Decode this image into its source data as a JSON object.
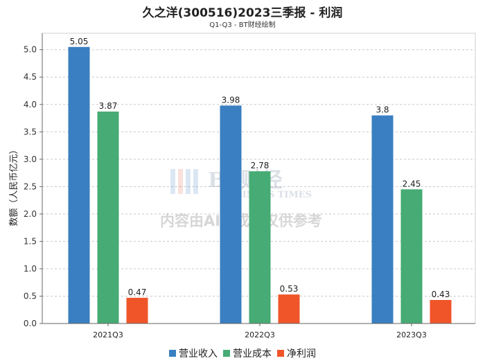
{
  "title": "久之洋(300516)2023三季报 - 利润",
  "subtitle": "Q1-Q3 - BT财经绘制",
  "watermark": {
    "logo_text": "BT财经",
    "logo_sub": "BUSINESS TIMES",
    "notice": "内容由AI生成，仅供参考"
  },
  "chart_data": {
    "type": "bar",
    "title": "久之洋(300516)2023三季报 - 利润",
    "subtitle": "Q1-Q3 - BT财经绘制",
    "xlabel": "",
    "ylabel": "数额（人民币亿元）",
    "categories": [
      "2021Q3",
      "2022Q3",
      "2023Q3"
    ],
    "series": [
      {
        "name": "营业收入",
        "color": "#3a7fc1",
        "values": [
          5.05,
          3.98,
          3.8
        ]
      },
      {
        "name": "营业成本",
        "color": "#46ab74",
        "values": [
          3.87,
          2.78,
          2.45
        ]
      },
      {
        "name": "净利润",
        "color": "#f0552a",
        "values": [
          0.47,
          0.53,
          0.43
        ]
      }
    ],
    "ylim": [
      0,
      5.3
    ],
    "yticks": [
      "0.0",
      "0.5",
      "1.0",
      "1.5",
      "2.0",
      "2.5",
      "3.0",
      "3.5",
      "4.0",
      "4.5",
      "5.0"
    ],
    "grid": true,
    "legend": "bottom-center"
  }
}
